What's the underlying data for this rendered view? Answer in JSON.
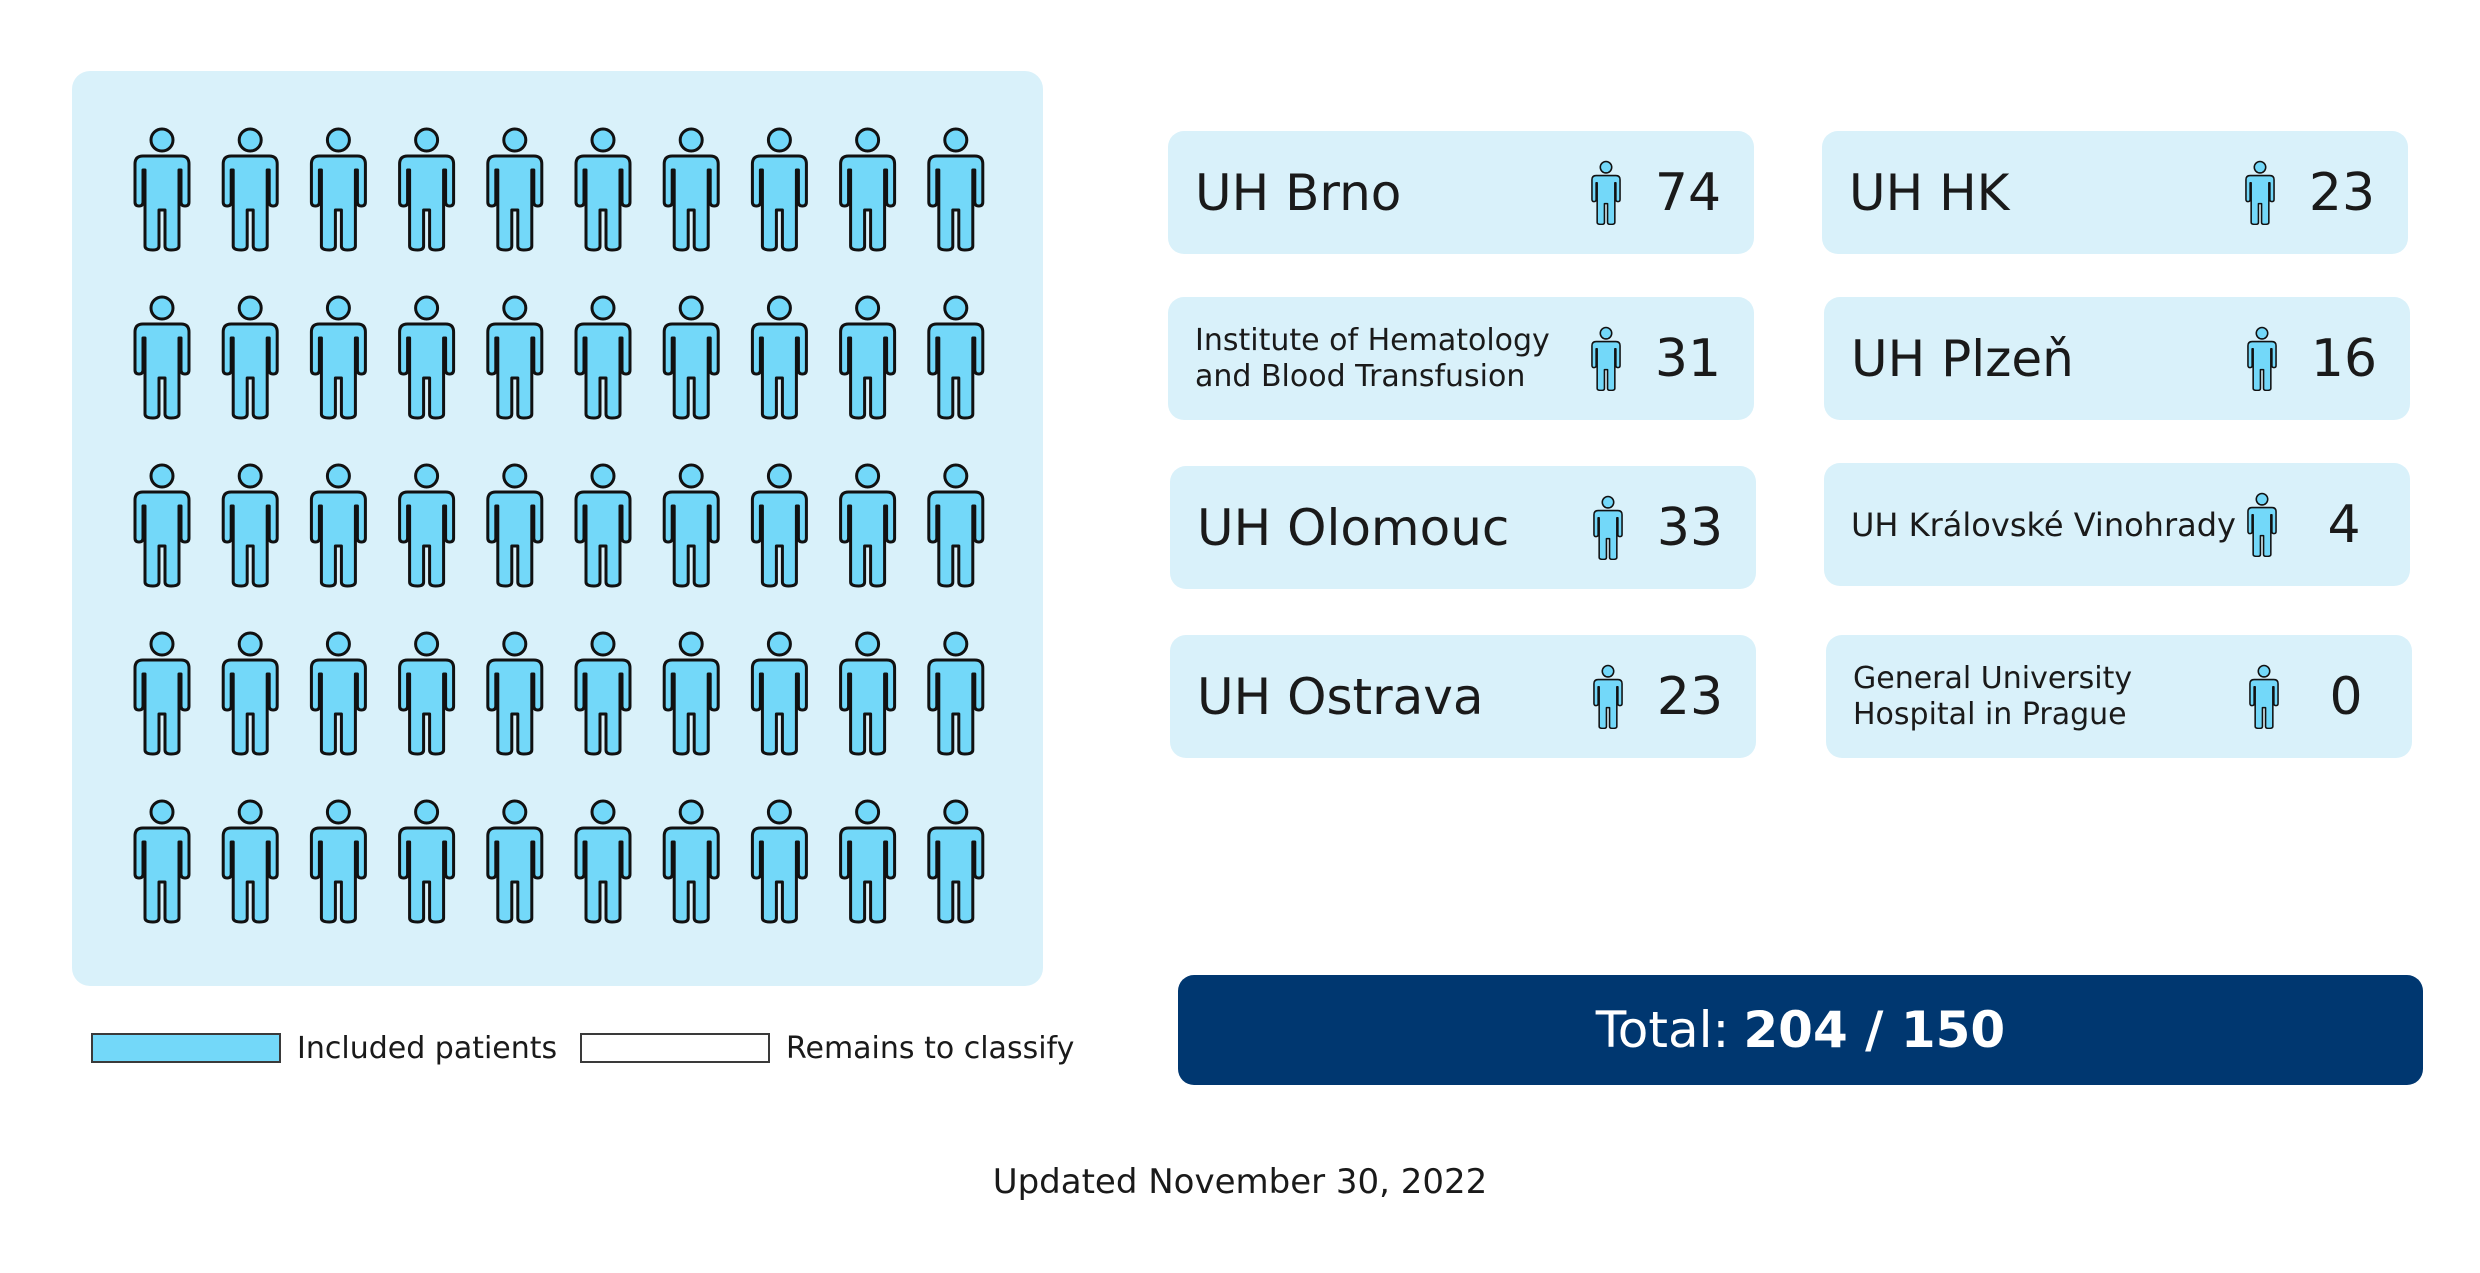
{
  "legend": {
    "included_label": "Included patients",
    "remaining_label": "Remains to classify",
    "included_color": "#73d8f9",
    "remaining_color": "#ffffff"
  },
  "pictogram": {
    "icon": "person-icon",
    "rows": 5,
    "cols": 10,
    "included": 50,
    "fill_color": "#73d8f9",
    "panel_color": "#d9f1fa"
  },
  "sites": [
    {
      "name": "UH Brno",
      "count": "74"
    },
    {
      "name": "Institute of Hematology and Blood Transfusion",
      "count": "31"
    },
    {
      "name": "UH Olomouc",
      "count": "33"
    },
    {
      "name": "UH Ostrava",
      "count": "23"
    },
    {
      "name": "UH HK",
      "count": "23"
    },
    {
      "name": "UH Plzeň",
      "count": "16"
    },
    {
      "name": "UH Královské Vinohrady",
      "count": "4"
    },
    {
      "name": "General University Hospital in Prague",
      "count": "0"
    }
  ],
  "total": {
    "label": "Total:",
    "value": "204 / 150",
    "color": "#003770"
  },
  "updated": "Updated November 30, 2022"
}
